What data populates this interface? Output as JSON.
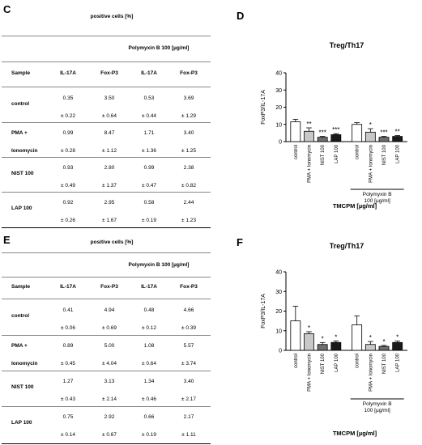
{
  "panels": {
    "C": {
      "letter": "C",
      "header_positive": "positive cells [%]",
      "header_polymyxin": "Polymyxin B 100 [µg/ml]",
      "columns": [
        "Sample",
        "IL-17A",
        "Fox-P3",
        "IL-17A",
        "Fox-P3"
      ],
      "rows": [
        {
          "sample": [
            "control"
          ],
          "values": [
            [
              "0.35",
              "± 0.22"
            ],
            [
              "3.50",
              "± 0.64"
            ],
            [
              "0.53",
              "± 0.44"
            ],
            [
              "3.69",
              "± 1.29"
            ]
          ]
        },
        {
          "sample": [
            "PMA +",
            "Ionomycin"
          ],
          "values": [
            [
              "0.99",
              "± 0.28"
            ],
            [
              "8.47",
              "± 1.12"
            ],
            [
              "1.71",
              "± 1.36"
            ],
            [
              "3.40",
              "± 1.25"
            ]
          ]
        },
        {
          "sample": [
            "NIST 100"
          ],
          "values": [
            [
              "0.93",
              "± 0.49"
            ],
            [
              "2.80",
              "± 1.37"
            ],
            [
              "0.99",
              "± 0.47"
            ],
            [
              "2.38",
              "± 0.82"
            ]
          ]
        },
        {
          "sample": [
            "LAP 100"
          ],
          "values": [
            [
              "0.92",
              "± 0.26"
            ],
            [
              "2.95",
              "± 1.67"
            ],
            [
              "0.58",
              "± 0.19"
            ],
            [
              "2.44",
              "± 1.23"
            ]
          ]
        }
      ]
    },
    "E": {
      "letter": "E",
      "header_positive": "positive cells [%]",
      "header_polymyxin": "Polymyxin B 100 [µg/ml]",
      "columns": [
        "Sample",
        "IL-17A",
        "Fox-P3",
        "IL-17A",
        "Fox-P3"
      ],
      "rows": [
        {
          "sample": [
            "control"
          ],
          "values": [
            [
              "0.41",
              "± 0.06"
            ],
            [
              "4.94",
              "± 0.69"
            ],
            [
              "0.48",
              "± 0.12"
            ],
            [
              "4.66",
              "± 0.39"
            ]
          ]
        },
        {
          "sample": [
            "PMA +",
            "Ionomycin"
          ],
          "values": [
            [
              "0.89",
              "± 0.45"
            ],
            [
              "5.00",
              "± 4.04"
            ],
            [
              "1.08",
              "± 0.64"
            ],
            [
              "5.57",
              "± 3.74"
            ]
          ]
        },
        {
          "sample": [
            "NIST 100"
          ],
          "values": [
            [
              "1.27",
              "± 0.43"
            ],
            [
              "3.13",
              "± 2.14"
            ],
            [
              "1.34",
              "± 0.46"
            ],
            [
              "3.40",
              "± 2.17"
            ]
          ]
        },
        {
          "sample": [
            "LAP 100"
          ],
          "values": [
            [
              "0.75",
              "± 0.14"
            ],
            [
              "2.92",
              "± 0.67"
            ],
            [
              "0.66",
              "± 0.19"
            ],
            [
              "2.17",
              "± 1.11"
            ]
          ]
        }
      ]
    }
  },
  "chart_data": [
    {
      "panel": "D",
      "type": "bar",
      "title": "Treg/Th17",
      "ylabel": "FoxP3/IL-17A",
      "xlabel": "TMCPM [µg/ml]",
      "group_label": "Polymyxin B 100 [µg/ml]",
      "ylim": [
        0,
        40
      ],
      "yticks": [
        "0",
        "10",
        "20",
        "30",
        "40"
      ],
      "categories": [
        "control",
        "PMA + Ionomycin",
        "NIST 100",
        "LAP 100",
        "control",
        "PMA + Ionomycin",
        "NIST 100",
        "LAP 100"
      ],
      "values": [
        11.5,
        6.0,
        2.5,
        4.0,
        10.0,
        5.5,
        2.5,
        3.0
      ],
      "errors": [
        1.5,
        2.0,
        0.5,
        0.6,
        1.0,
        2.0,
        0.5,
        0.5
      ],
      "annotations": [
        "",
        "**",
        "***",
        "***",
        "",
        "*",
        "***",
        "**"
      ],
      "colors": [
        "#ffffff",
        "#c8c8c8",
        "#6e6e6e",
        "#1a1a1a",
        "#ffffff",
        "#c8c8c8",
        "#6e6e6e",
        "#1a1a1a"
      ]
    },
    {
      "panel": "F",
      "type": "bar",
      "title": "Treg/Th17",
      "ylabel": "FoxP3/IL-17A",
      "xlabel": "TMCPM [µg/ml]",
      "group_label": "Polymyxin B 100 [µg/ml]",
      "ylim": [
        0,
        40
      ],
      "yticks": [
        "0",
        "10",
        "20",
        "30",
        "40"
      ],
      "categories": [
        "control",
        "PMA + Ionomycin",
        "NIST 100",
        "LAP 100",
        "control",
        "PMA + Ionomycin",
        "NIST 100",
        "LAP 100"
      ],
      "values": [
        15.0,
        8.5,
        3.0,
        4.0,
        13.0,
        3.0,
        2.0,
        4.0
      ],
      "errors": [
        7.5,
        1.0,
        1.0,
        0.8,
        4.5,
        1.5,
        0.5,
        0.7
      ],
      "annotations": [
        "",
        "*",
        "*",
        "*",
        "",
        "*",
        "*",
        "*"
      ],
      "colors": [
        "#ffffff",
        "#c8c8c8",
        "#6e6e6e",
        "#1a1a1a",
        "#ffffff",
        "#c8c8c8",
        "#6e6e6e",
        "#1a1a1a"
      ]
    }
  ]
}
